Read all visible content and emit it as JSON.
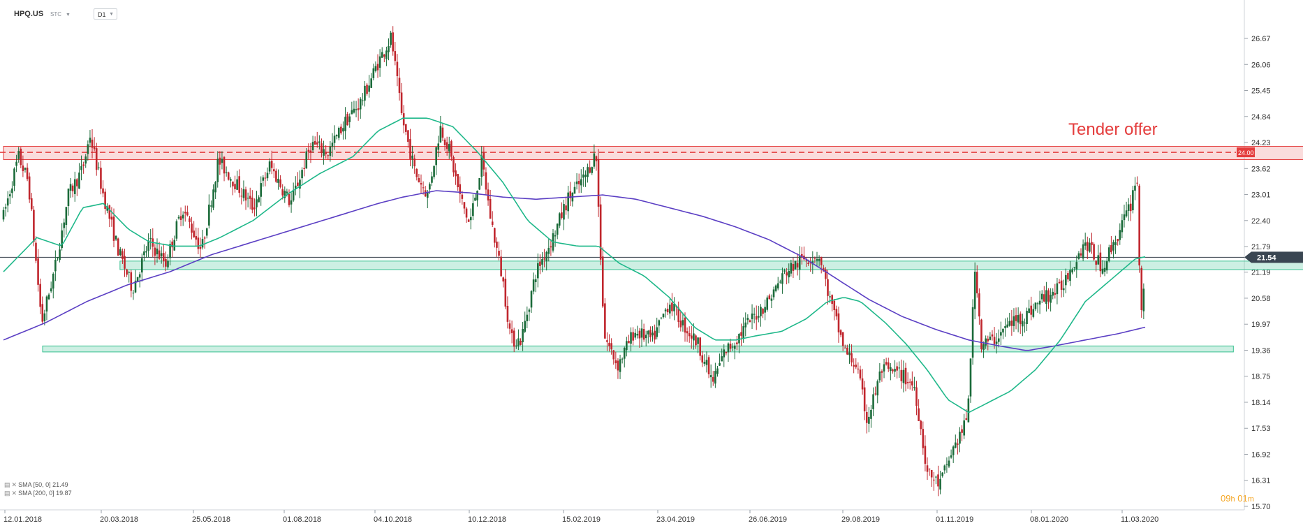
{
  "header": {
    "symbol": "HPQ.US",
    "subtype": "STC",
    "timeframe": "D1"
  },
  "indicators": [
    {
      "label": "SMA [50, 0] 21.49",
      "color": "#1fb88a"
    },
    {
      "label": "SMA [200, 0] 19.87",
      "color": "#5b3fc4"
    }
  ],
  "timer": {
    "hours": "09",
    "h": "h",
    "minutes": "01",
    "m": "m"
  },
  "colors": {
    "up": "#1b6b3a",
    "down": "#c0262d",
    "sma50": "#1fb88a",
    "sma200": "#5b3fc4",
    "resistance": "#e43d3d",
    "support": "#36c08f",
    "price_line": "#2f3a45",
    "grid": "#e9ecef"
  },
  "chart_data": {
    "type": "candlestick",
    "y_ticks": [
      "26.67",
      "26.06",
      "25.45",
      "24.84",
      "24.23",
      "23.62",
      "23.01",
      "22.40",
      "21.79",
      "21.19",
      "20.58",
      "19.97",
      "19.36",
      "18.75",
      "18.14",
      "17.53",
      "16.92",
      "16.31",
      "15.70"
    ],
    "x_ticks": [
      "12.01.2018",
      "20.03.2018",
      "25.05.2018",
      "01.08.2018",
      "04.10.2018",
      "10.12.2018",
      "15.02.2019",
      "23.04.2019",
      "26.06.2019",
      "29.08.2019",
      "01.11.2019",
      "08.01.2020",
      "11.03.2020"
    ],
    "ylim": [
      15.7,
      26.67
    ],
    "last_price": "21.54",
    "tender_level": "24.00",
    "annotation": "Tender offer",
    "zones": [
      {
        "name": "resistance",
        "from": 23.83,
        "to": 24.14,
        "start": "12.01.2018",
        "end": "02.2020"
      },
      {
        "name": "upper-support",
        "from": 21.25,
        "to": 21.45,
        "start": "03.2018",
        "end": "02.2020"
      },
      {
        "name": "lower-support",
        "from": 19.32,
        "to": 19.46,
        "start": "12.01.2018",
        "end": "10.2019"
      }
    ],
    "price_path": [
      [
        0,
        22.5
      ],
      [
        18,
        23.9
      ],
      [
        30,
        23.3
      ],
      [
        46,
        20.0
      ],
      [
        62,
        21.3
      ],
      [
        78,
        23.0
      ],
      [
        95,
        23.6
      ],
      [
        104,
        24.4
      ],
      [
        120,
        23.0
      ],
      [
        138,
        21.7
      ],
      [
        155,
        20.8
      ],
      [
        175,
        21.9
      ],
      [
        195,
        21.4
      ],
      [
        215,
        22.7
      ],
      [
        238,
        21.7
      ],
      [
        258,
        23.8
      ],
      [
        278,
        23.3
      ],
      [
        300,
        22.7
      ],
      [
        320,
        23.7
      ],
      [
        345,
        22.8
      ],
      [
        370,
        24.2
      ],
      [
        390,
        24.0
      ],
      [
        410,
        24.7
      ],
      [
        430,
        25.2
      ],
      [
        450,
        26.1
      ],
      [
        466,
        26.7
      ],
      [
        478,
        24.9
      ],
      [
        495,
        23.5
      ],
      [
        510,
        23.0
      ],
      [
        525,
        24.6
      ],
      [
        535,
        24.1
      ],
      [
        548,
        23.0
      ],
      [
        560,
        22.3
      ],
      [
        575,
        23.8
      ],
      [
        585,
        22.5
      ],
      [
        600,
        21.0
      ],
      [
        610,
        19.6
      ],
      [
        622,
        19.6
      ],
      [
        640,
        21.2
      ],
      [
        660,
        22.0
      ],
      [
        678,
        22.9
      ],
      [
        698,
        23.4
      ],
      [
        712,
        24.0
      ],
      [
        722,
        19.7
      ],
      [
        738,
        19.0
      ],
      [
        758,
        19.8
      ],
      [
        780,
        19.6
      ],
      [
        800,
        20.5
      ],
      [
        815,
        20.0
      ],
      [
        835,
        19.5
      ],
      [
        852,
        18.6
      ],
      [
        866,
        19.3
      ],
      [
        880,
        19.6
      ],
      [
        895,
        20.0
      ],
      [
        918,
        20.5
      ],
      [
        940,
        21.2
      ],
      [
        962,
        21.5
      ],
      [
        980,
        21.6
      ],
      [
        995,
        20.4
      ],
      [
        1012,
        19.3
      ],
      [
        1025,
        19.0
      ],
      [
        1038,
        17.7
      ],
      [
        1055,
        18.9
      ],
      [
        1078,
        18.8
      ],
      [
        1095,
        18.5
      ],
      [
        1110,
        16.5
      ],
      [
        1125,
        16.2
      ],
      [
        1140,
        17.0
      ],
      [
        1158,
        17.7
      ],
      [
        1168,
        21.4
      ],
      [
        1175,
        19.5
      ],
      [
        1190,
        19.6
      ],
      [
        1210,
        20.0
      ],
      [
        1230,
        20.2
      ],
      [
        1250,
        20.6
      ],
      [
        1270,
        20.8
      ],
      [
        1285,
        21.4
      ],
      [
        1300,
        21.9
      ],
      [
        1320,
        21.3
      ],
      [
        1340,
        22.1
      ],
      [
        1355,
        22.8
      ],
      [
        1362,
        23.6
      ],
      [
        1365,
        21.3
      ],
      [
        1368,
        20.2
      ],
      [
        1372,
        21.5
      ]
    ],
    "sma50_path": [
      [
        0,
        21.2
      ],
      [
        40,
        22.0
      ],
      [
        70,
        21.8
      ],
      [
        95,
        22.7
      ],
      [
        120,
        22.8
      ],
      [
        150,
        22.2
      ],
      [
        175,
        21.9
      ],
      [
        205,
        21.8
      ],
      [
        235,
        21.8
      ],
      [
        260,
        22.0
      ],
      [
        300,
        22.4
      ],
      [
        340,
        23.0
      ],
      [
        380,
        23.5
      ],
      [
        420,
        23.9
      ],
      [
        450,
        24.5
      ],
      [
        480,
        24.8
      ],
      [
        510,
        24.8
      ],
      [
        540,
        24.6
      ],
      [
        570,
        24.0
      ],
      [
        600,
        23.3
      ],
      [
        630,
        22.4
      ],
      [
        660,
        21.9
      ],
      [
        690,
        21.8
      ],
      [
        715,
        21.8
      ],
      [
        740,
        21.4
      ],
      [
        770,
        21.1
      ],
      [
        800,
        20.6
      ],
      [
        830,
        19.9
      ],
      [
        855,
        19.6
      ],
      [
        880,
        19.6
      ],
      [
        905,
        19.7
      ],
      [
        935,
        19.8
      ],
      [
        965,
        20.1
      ],
      [
        990,
        20.5
      ],
      [
        1010,
        20.6
      ],
      [
        1030,
        20.5
      ],
      [
        1060,
        20.0
      ],
      [
        1085,
        19.5
      ],
      [
        1110,
        18.9
      ],
      [
        1135,
        18.2
      ],
      [
        1160,
        17.9
      ],
      [
        1180,
        18.1
      ],
      [
        1210,
        18.4
      ],
      [
        1240,
        18.9
      ],
      [
        1270,
        19.6
      ],
      [
        1300,
        20.5
      ],
      [
        1330,
        21.0
      ],
      [
        1360,
        21.5
      ],
      [
        1372,
        21.55
      ]
    ],
    "sma200_path": [
      [
        0,
        19.6
      ],
      [
        50,
        20.0
      ],
      [
        100,
        20.5
      ],
      [
        150,
        20.9
      ],
      [
        200,
        21.2
      ],
      [
        250,
        21.6
      ],
      [
        300,
        21.9
      ],
      [
        350,
        22.2
      ],
      [
        400,
        22.5
      ],
      [
        450,
        22.8
      ],
      [
        480,
        22.95
      ],
      [
        520,
        23.1
      ],
      [
        560,
        23.05
      ],
      [
        600,
        22.95
      ],
      [
        640,
        22.9
      ],
      [
        680,
        22.95
      ],
      [
        720,
        23.0
      ],
      [
        760,
        22.9
      ],
      [
        800,
        22.7
      ],
      [
        840,
        22.5
      ],
      [
        880,
        22.25
      ],
      [
        920,
        21.95
      ],
      [
        960,
        21.55
      ],
      [
        1000,
        21.05
      ],
      [
        1040,
        20.55
      ],
      [
        1080,
        20.15
      ],
      [
        1120,
        19.85
      ],
      [
        1160,
        19.6
      ],
      [
        1200,
        19.45
      ],
      [
        1230,
        19.35
      ],
      [
        1260,
        19.45
      ],
      [
        1300,
        19.6
      ],
      [
        1340,
        19.75
      ],
      [
        1372,
        19.9
      ]
    ]
  }
}
